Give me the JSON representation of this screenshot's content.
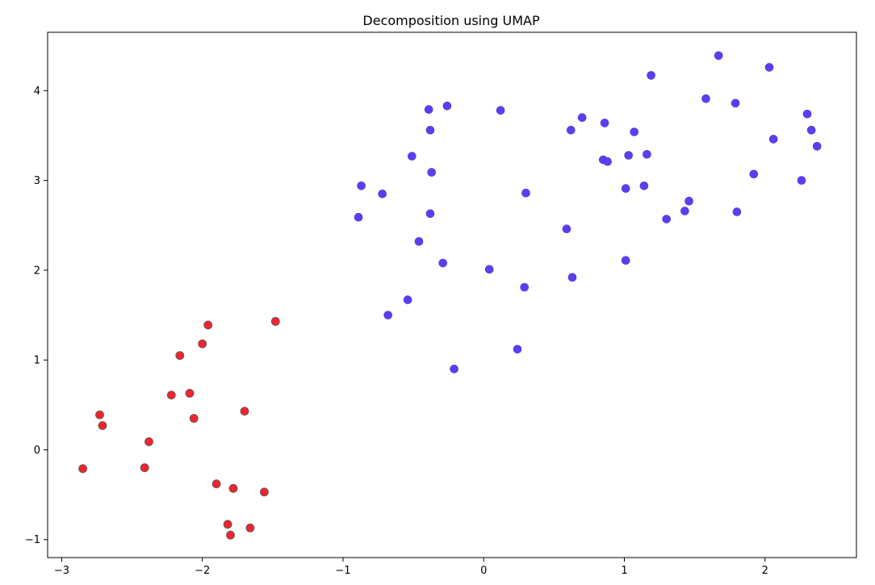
{
  "chart_data": {
    "type": "scatter",
    "title": "Decomposition using UMAP",
    "xlabel": "",
    "ylabel": "",
    "xlim": [
      -3.1,
      2.65
    ],
    "ylim": [
      -1.2,
      4.65
    ],
    "xticks": [
      -3,
      -2,
      -1,
      0,
      1,
      2
    ],
    "yticks": [
      -1,
      0,
      1,
      2,
      3,
      4
    ],
    "grid": false,
    "series": [
      {
        "color": "#5b3ef2",
        "points": [
          [
            -0.89,
            2.59
          ],
          [
            -0.87,
            2.94
          ],
          [
            -0.72,
            2.85
          ],
          [
            -0.68,
            1.5
          ],
          [
            -0.54,
            1.67
          ],
          [
            -0.51,
            3.27
          ],
          [
            -0.46,
            2.32
          ],
          [
            -0.39,
            3.79
          ],
          [
            -0.38,
            3.56
          ],
          [
            -0.38,
            2.63
          ],
          [
            -0.37,
            3.09
          ],
          [
            -0.29,
            2.08
          ],
          [
            -0.26,
            3.83
          ],
          [
            -0.21,
            0.9
          ],
          [
            0.04,
            2.01
          ],
          [
            0.12,
            3.78
          ],
          [
            0.24,
            1.12
          ],
          [
            0.29,
            1.81
          ],
          [
            0.3,
            2.86
          ],
          [
            0.59,
            2.46
          ],
          [
            0.62,
            3.56
          ],
          [
            0.63,
            1.92
          ],
          [
            0.7,
            3.7
          ],
          [
            0.85,
            3.23
          ],
          [
            0.86,
            3.64
          ],
          [
            0.88,
            3.21
          ],
          [
            1.01,
            2.91
          ],
          [
            1.01,
            2.11
          ],
          [
            1.03,
            3.28
          ],
          [
            1.07,
            3.54
          ],
          [
            1.14,
            2.94
          ],
          [
            1.16,
            3.29
          ],
          [
            1.19,
            4.17
          ],
          [
            1.3,
            2.57
          ],
          [
            1.43,
            2.66
          ],
          [
            1.46,
            2.77
          ],
          [
            1.58,
            3.91
          ],
          [
            1.67,
            4.39
          ],
          [
            1.79,
            3.86
          ],
          [
            1.8,
            2.65
          ],
          [
            1.92,
            3.07
          ],
          [
            2.03,
            4.26
          ],
          [
            2.06,
            3.46
          ],
          [
            2.26,
            3.0
          ],
          [
            2.3,
            3.74
          ],
          [
            2.33,
            3.56
          ],
          [
            2.37,
            3.38
          ]
        ]
      },
      {
        "color": "#f2232e",
        "points": [
          [
            -2.85,
            -0.21
          ],
          [
            -2.73,
            0.39
          ],
          [
            -2.71,
            0.27
          ],
          [
            -2.41,
            -0.2
          ],
          [
            -2.38,
            0.09
          ],
          [
            -2.22,
            0.61
          ],
          [
            -2.16,
            1.05
          ],
          [
            -2.09,
            0.63
          ],
          [
            -2.06,
            0.35
          ],
          [
            -2.0,
            1.18
          ],
          [
            -1.96,
            1.39
          ],
          [
            -1.9,
            -0.38
          ],
          [
            -1.82,
            -0.83
          ],
          [
            -1.8,
            -0.95
          ],
          [
            -1.78,
            -0.43
          ],
          [
            -1.7,
            0.43
          ],
          [
            -1.66,
            -0.87
          ],
          [
            -1.56,
            -0.47
          ],
          [
            -1.48,
            1.43
          ]
        ]
      }
    ]
  }
}
